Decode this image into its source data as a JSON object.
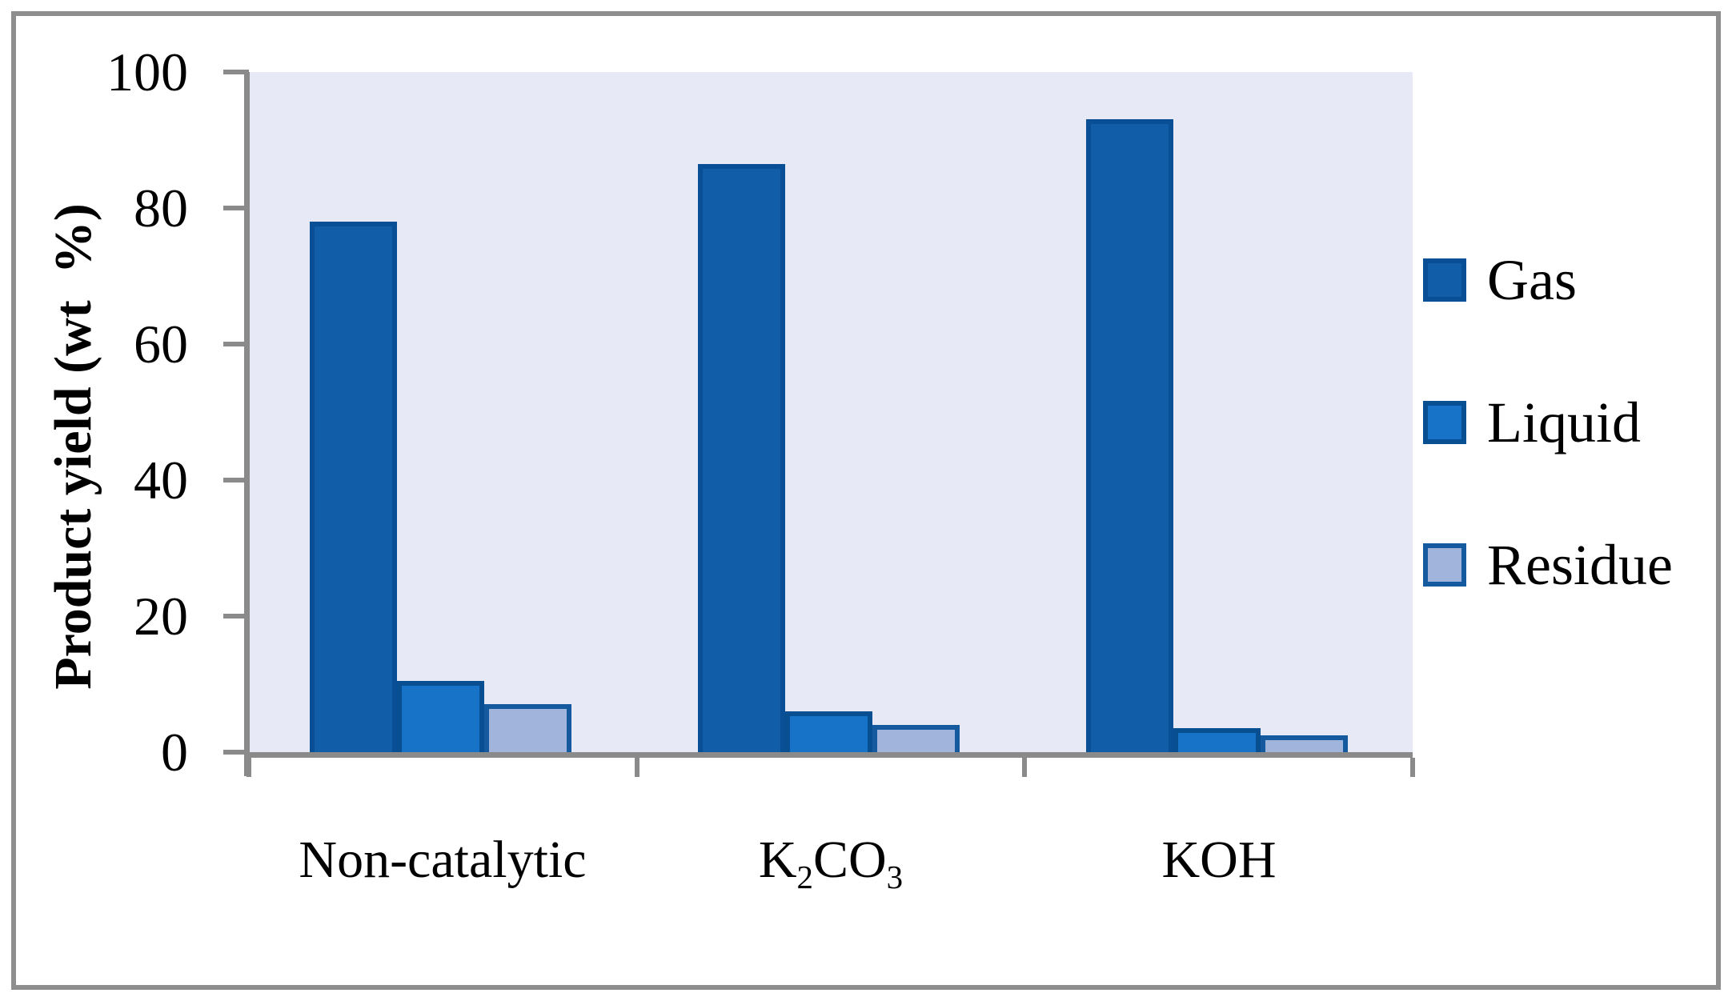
{
  "figure": {
    "background": "#FFFFFF",
    "frame_color": "#8E8E8E"
  },
  "chart_data": {
    "type": "bar",
    "title": "",
    "categories": [
      "Non-catalytic",
      "K2CO3",
      "KOH"
    ],
    "categories_rich": [
      [
        {
          "text": "Non-catalytic",
          "sub": false
        }
      ],
      [
        {
          "text": "K",
          "sub": false
        },
        {
          "text": "2",
          "sub": true
        },
        {
          "text": "CO",
          "sub": false
        },
        {
          "text": "3",
          "sub": true
        }
      ],
      [
        {
          "text": "KOH",
          "sub": false
        }
      ]
    ],
    "series": [
      {
        "name": "Gas",
        "values": [
          78,
          86.5,
          93
        ],
        "fill": "#115DA8",
        "border": "#084F96"
      },
      {
        "name": "Liquid",
        "values": [
          10.5,
          6,
          3.5
        ],
        "fill": "#1773C8",
        "border": "#074F91"
      },
      {
        "name": "Residue",
        "values": [
          7,
          4,
          2.5
        ],
        "fill": "#A0B4DC",
        "border": "#15599F"
      }
    ],
    "xlabel": "",
    "ylabel": "Product yield (wt  %)",
    "ylim": [
      0,
      100
    ],
    "yticks": [
      100,
      80,
      60,
      40,
      20,
      0
    ],
    "plot_background": "#E7EAF6",
    "axis_color": "#8A8A8A",
    "legend_position": "right",
    "grid": false
  },
  "legend": {
    "items": [
      {
        "label": "Gas"
      },
      {
        "label": "Liquid"
      },
      {
        "label": "Residue"
      }
    ]
  }
}
